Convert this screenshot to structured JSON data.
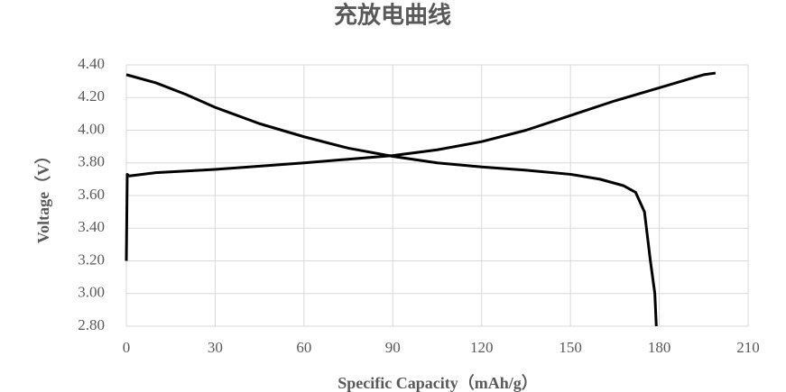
{
  "chart_data": {
    "type": "line",
    "title": "充放电曲线",
    "x_label": "Specific Capacity（mAh/g）",
    "y_label": "Voltage（V）",
    "series": [
      {
        "color": "#000000",
        "x": [
          0,
          0.3,
          1,
          10,
          30,
          60,
          90,
          105,
          120,
          135,
          150,
          165,
          180,
          195,
          199
        ],
        "values": [
          3.2,
          3.73,
          3.72,
          3.74,
          3.76,
          3.8,
          3.845,
          3.88,
          3.93,
          4.0,
          4.09,
          4.18,
          4.26,
          4.34,
          4.35
        ]
      },
      {
        "color": "#000000",
        "x": [
          0,
          10,
          20,
          30,
          45,
          60,
          75,
          90,
          105,
          120,
          135,
          150,
          160,
          168,
          172,
          175,
          177,
          178.5,
          179
        ],
        "values": [
          4.34,
          4.29,
          4.22,
          4.14,
          4.04,
          3.96,
          3.89,
          3.84,
          3.8,
          3.775,
          3.755,
          3.73,
          3.7,
          3.66,
          3.62,
          3.5,
          3.2,
          3.0,
          2.8
        ]
      }
    ],
    "xlim": [
      0,
      210
    ],
    "xticks": [
      0,
      30,
      60,
      90,
      120,
      150,
      180,
      210
    ],
    "ylim": [
      2.8,
      4.4
    ],
    "yticks": [
      {
        "value": 2.8,
        "label": "2.80"
      },
      {
        "value": 3.0,
        "label": "3.00"
      },
      {
        "value": 3.2,
        "label": "3.20"
      },
      {
        "value": 3.4,
        "label": "3.40"
      },
      {
        "value": 3.6,
        "label": "3.60"
      },
      {
        "value": 3.8,
        "label": "3.80"
      },
      {
        "value": 4.0,
        "label": "4.00"
      },
      {
        "value": 4.2,
        "label": "4.20"
      },
      {
        "value": 4.4,
        "label": "4.40"
      }
    ],
    "grid": true
  }
}
